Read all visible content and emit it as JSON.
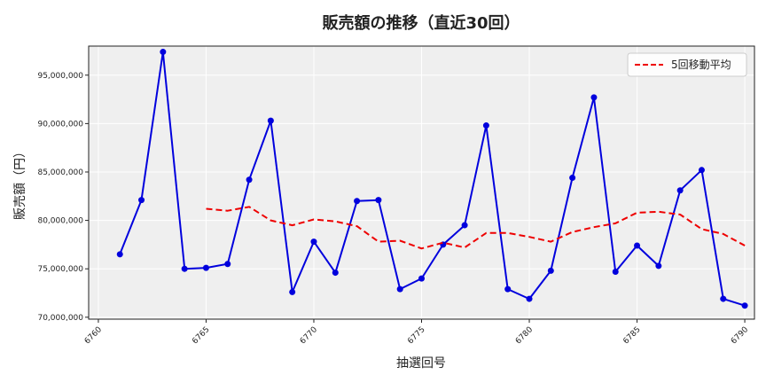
{
  "chart_data": {
    "type": "line",
    "title": "販売額の推移（直近30回）",
    "xlabel": "抽選回号",
    "ylabel": "販売額（円）",
    "xlim": [
      6759.55,
      6790.45
    ],
    "ylim": [
      69800000,
      98000000
    ],
    "xticks": [
      6760,
      6765,
      6770,
      6775,
      6780,
      6785,
      6790
    ],
    "yticks": [
      70000000,
      75000000,
      80000000,
      85000000,
      90000000,
      95000000
    ],
    "ytick_labels": [
      "70,000,000",
      "75,000,000",
      "80,000,000",
      "85,000,000",
      "90,000,000",
      "95,000,000"
    ],
    "grid": true,
    "legend_position": "top-right",
    "series": [
      {
        "color": "#0000dd",
        "style": "solid",
        "marker": "circle",
        "x": [
          6761,
          6762,
          6763,
          6764,
          6765,
          6766,
          6767,
          6768,
          6769,
          6770,
          6771,
          6772,
          6773,
          6774,
          6775,
          6776,
          6777,
          6778,
          6779,
          6780,
          6781,
          6782,
          6783,
          6784,
          6785,
          6786,
          6787,
          6788,
          6789,
          6790
        ],
        "values": [
          76500000,
          82100000,
          97400000,
          75000000,
          75100000,
          75500000,
          84200000,
          90300000,
          72600000,
          77800000,
          74600000,
          82000000,
          82100000,
          72900000,
          74000000,
          77500000,
          79500000,
          89800000,
          72900000,
          71900000,
          74800000,
          84400000,
          92700000,
          74700000,
          77400000,
          75300000,
          83100000,
          85200000,
          71900000,
          71200000
        ]
      },
      {
        "name": "5回移動平均",
        "color": "#ee0000",
        "style": "dashed",
        "marker": "none",
        "x": [
          6765,
          6766,
          6767,
          6768,
          6769,
          6770,
          6771,
          6772,
          6773,
          6774,
          6775,
          6776,
          6777,
          6778,
          6779,
          6780,
          6781,
          6782,
          6783,
          6784,
          6785,
          6786,
          6787,
          6788,
          6789,
          6790
        ],
        "values": [
          81200000,
          81000000,
          81400000,
          80000000,
          79500000,
          80100000,
          79900000,
          79400000,
          77800000,
          77900000,
          77100000,
          77700000,
          77200000,
          78700000,
          78700000,
          78300000,
          77800000,
          78800000,
          79300000,
          79700000,
          80800000,
          80900000,
          80600000,
          79100000,
          78600000,
          77400000
        ]
      }
    ]
  },
  "colors": {
    "plot_background": "#efefef",
    "grid": "#ffffff"
  }
}
